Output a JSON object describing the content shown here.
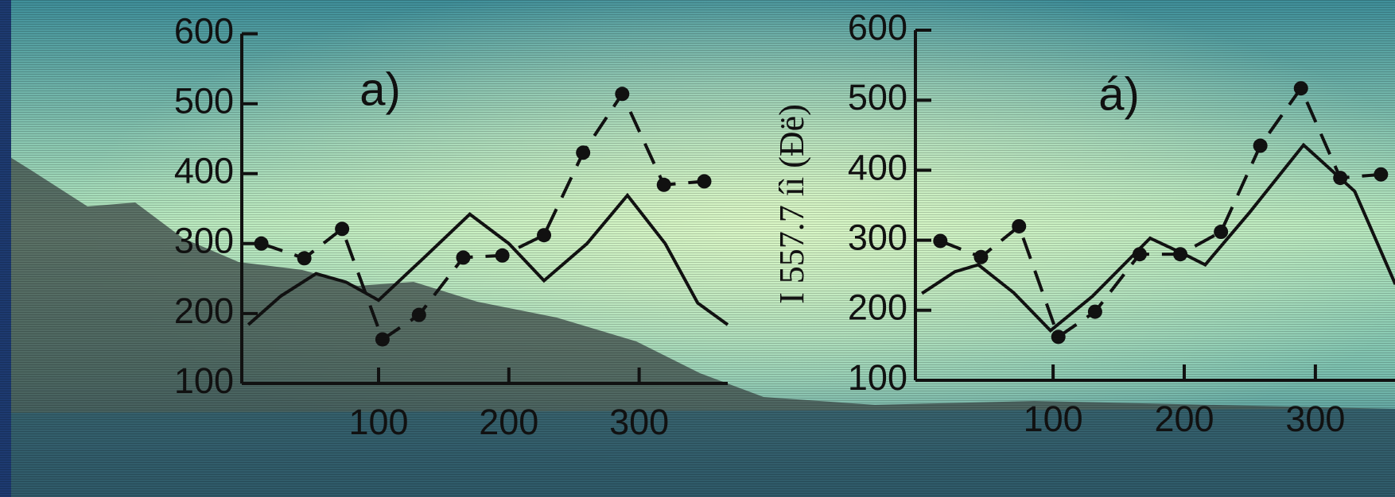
{
  "chart_data": [
    {
      "type": "line",
      "title": "a)",
      "xlim": [
        -5,
        368
      ],
      "ylim": [
        100,
        600
      ],
      "xticks": [
        100,
        200,
        300
      ],
      "yticks": [
        100,
        200,
        300,
        400,
        500,
        600
      ],
      "series": [
        {
          "color": "#111111",
          "style": "dashed",
          "markers": true,
          "x": [
            10,
            43,
            72,
            103,
            131,
            165,
            195,
            227,
            257,
            287,
            319,
            350
          ],
          "values": [
            300,
            279,
            321,
            163,
            198,
            280,
            283,
            312,
            430,
            514,
            384,
            389
          ]
        },
        {
          "color": "#111111",
          "style": "solid",
          "markers": false,
          "x": [
            0,
            25,
            52,
            75,
            100,
            135,
            170,
            200,
            227,
            260,
            291,
            320,
            345,
            368
          ],
          "values": [
            184,
            225,
            257,
            245,
            219,
            280,
            342,
            300,
            247,
            300,
            369,
            300,
            215,
            184
          ]
        }
      ]
    },
    {
      "type": "line",
      "title": "á)",
      "y_label": "I 557.7 íì (Ðë)",
      "xlim": [
        -5,
        368
      ],
      "ylim": [
        100,
        600
      ],
      "xticks": [
        100,
        200,
        300
      ],
      "yticks": [
        100,
        200,
        300,
        400,
        500,
        600
      ],
      "series": [
        {
          "color": "#111111",
          "style": "dashed",
          "markers": true,
          "x": [
            14,
            45,
            74,
            104,
            132,
            166,
            197,
            228,
            258,
            289,
            319,
            350
          ],
          "values": [
            299,
            276,
            320,
            162,
            198,
            280,
            280,
            312,
            435,
            517,
            389,
            394
          ]
        },
        {
          "color": "#111111",
          "style": "solid",
          "markers": false,
          "x": [
            0,
            25,
            43,
            70,
            98,
            130,
            174,
            200,
            216,
            250,
            291,
            330,
            361
          ],
          "values": [
            224,
            255,
            265,
            225,
            171,
            220,
            303,
            280,
            265,
            340,
            436,
            370,
            237
          ]
        }
      ]
    }
  ]
}
